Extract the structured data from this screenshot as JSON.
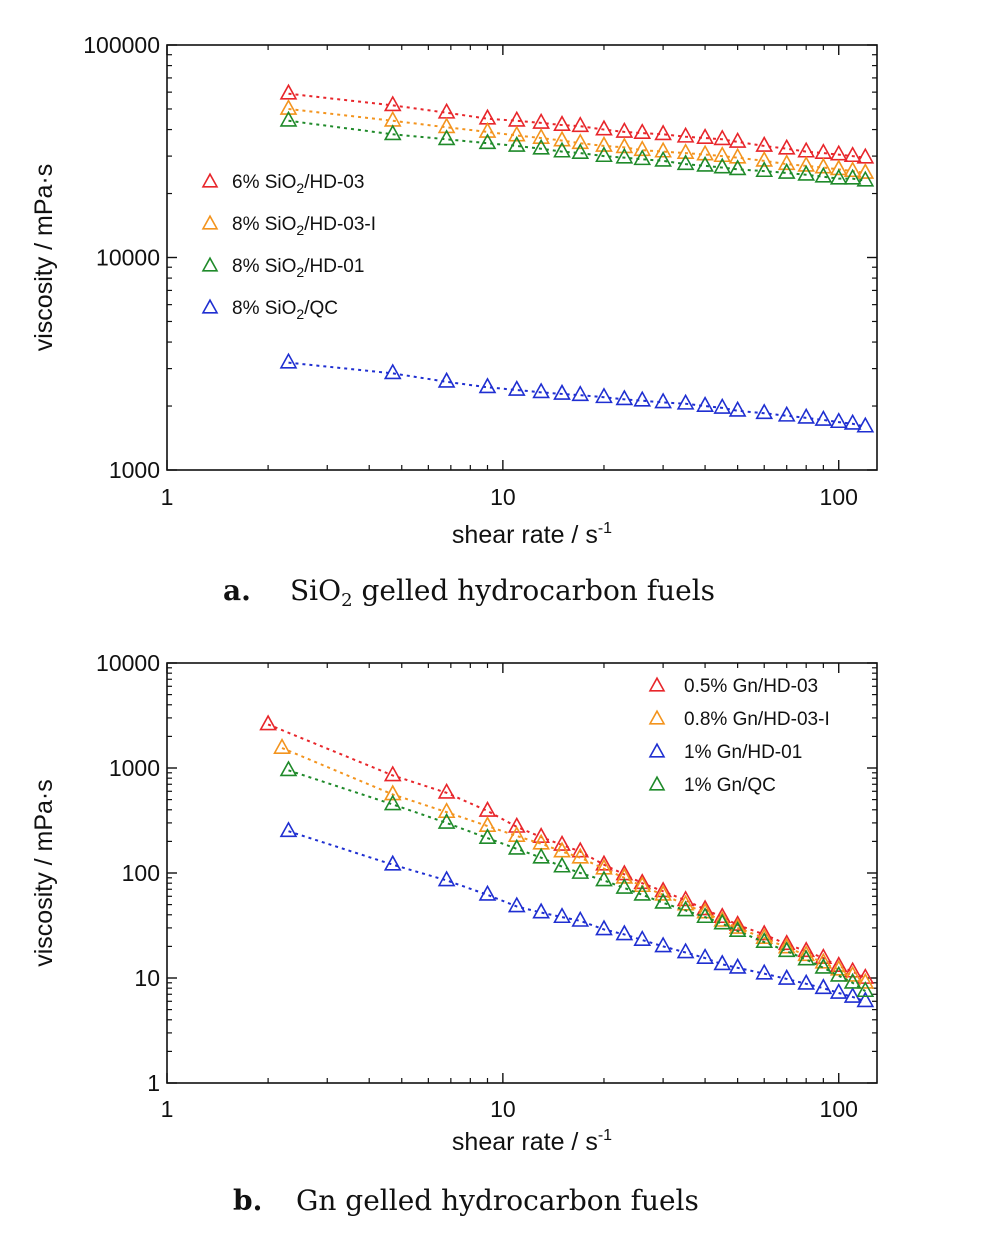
{
  "chart_data": [
    {
      "type": "scatter",
      "x_scale": "log",
      "y_scale": "log",
      "xlabel": "shear rate / s",
      "xlabel_sup": "-1",
      "ylabel": "viscosity / mPa·s",
      "xlim": [
        1,
        130
      ],
      "ylim": [
        1000,
        100000
      ],
      "x_ticks": [
        1,
        10,
        100
      ],
      "x_tick_labels": [
        "1",
        "10",
        "100"
      ],
      "y_ticks": [
        1000,
        10000,
        100000
      ],
      "y_tick_labels": [
        "1000",
        "10000",
        "100000"
      ],
      "grid": false,
      "legend_position": "middle-left",
      "caption_letter": "a.",
      "caption_text": "SiO₂ gelled hydrocarbon fuels",
      "series": [
        {
          "name": "6% SiO₂/HD-03",
          "color": "#e8262b",
          "marker": "open-triangle",
          "x": [
            2.3,
            4.7,
            6.8,
            9,
            11,
            13,
            15,
            17,
            20,
            23,
            26,
            30,
            35,
            40,
            45,
            50,
            60,
            70,
            80,
            90,
            100,
            110,
            120
          ],
          "y": [
            59000,
            52000,
            48000,
            45000,
            44000,
            43000,
            42000,
            41500,
            40000,
            39000,
            38500,
            38000,
            37000,
            36500,
            36000,
            35000,
            33500,
            32500,
            31500,
            31000,
            30500,
            30000,
            29500
          ]
        },
        {
          "name": "8% SiO₂/HD-03-I",
          "color": "#f3941e",
          "marker": "open-triangle",
          "x": [
            2.3,
            4.7,
            6.8,
            9,
            11,
            13,
            15,
            17,
            20,
            23,
            26,
            30,
            35,
            40,
            45,
            50,
            60,
            70,
            80,
            90,
            100,
            110,
            120
          ],
          "y": [
            50000,
            44000,
            41000,
            39000,
            37500,
            36500,
            35500,
            34500,
            33500,
            33000,
            32000,
            31500,
            31000,
            30500,
            30000,
            29500,
            28500,
            27500,
            27000,
            26500,
            26000,
            25500,
            25000
          ]
        },
        {
          "name": "8% SiO₂/HD-01",
          "color": "#1f8a2a",
          "marker": "open-triangle",
          "x": [
            2.3,
            4.7,
            6.8,
            9,
            11,
            13,
            15,
            17,
            20,
            23,
            26,
            30,
            35,
            40,
            45,
            50,
            60,
            70,
            80,
            90,
            100,
            110,
            120
          ],
          "y": [
            44000,
            38000,
            36000,
            34500,
            33500,
            32500,
            31500,
            31000,
            30000,
            29500,
            29000,
            28500,
            27500,
            27000,
            26500,
            26000,
            25500,
            25000,
            24500,
            24000,
            23500,
            23500,
            23000
          ]
        },
        {
          "name": "8% SiO₂/QC",
          "color": "#1f2fd1",
          "marker": "open-triangle",
          "x": [
            2.3,
            4.7,
            6.8,
            9,
            11,
            13,
            15,
            17,
            20,
            23,
            26,
            30,
            35,
            40,
            45,
            50,
            60,
            70,
            80,
            90,
            100,
            110,
            120
          ],
          "y": [
            3200,
            2850,
            2600,
            2450,
            2380,
            2320,
            2280,
            2250,
            2200,
            2150,
            2120,
            2080,
            2050,
            2000,
            1960,
            1900,
            1850,
            1800,
            1760,
            1720,
            1680,
            1650,
            1600
          ]
        }
      ]
    },
    {
      "type": "scatter",
      "x_scale": "log",
      "y_scale": "log",
      "xlabel": "shear rate / s",
      "xlabel_sup": "-1",
      "ylabel": "viscosity / mPa·s",
      "xlim": [
        1,
        130
      ],
      "ylim": [
        1,
        10000
      ],
      "x_ticks": [
        1,
        10,
        100
      ],
      "x_tick_labels": [
        "1",
        "10",
        "100"
      ],
      "y_ticks": [
        1,
        10,
        100,
        1000,
        10000
      ],
      "y_tick_labels": [
        "1",
        "10",
        "100",
        "1000",
        "10000"
      ],
      "grid": false,
      "legend_position": "top-right",
      "caption_letter": "b.",
      "caption_text": "Gn gelled hydrocarbon fuels",
      "series": [
        {
          "name": "0.5% Gn/HD-03",
          "color": "#e8262b",
          "marker": "open-triangle",
          "x": [
            2,
            4.7,
            6.8,
            9,
            11,
            13,
            15,
            17,
            20,
            23,
            26,
            30,
            35,
            40,
            45,
            50,
            60,
            70,
            80,
            90,
            100,
            110,
            120
          ],
          "y": [
            2600,
            850,
            580,
            390,
            275,
            220,
            185,
            160,
            120,
            97,
            80,
            67,
            55,
            45,
            38,
            32,
            26,
            21,
            18,
            15.5,
            13,
            11.5,
            10
          ]
        },
        {
          "name": "0.8% Gn/HD-03-I",
          "color": "#f3941e",
          "marker": "open-triangle",
          "x": [
            2.2,
            4.7,
            6.8,
            9,
            11,
            13,
            15,
            17,
            20,
            23,
            26,
            30,
            35,
            40,
            45,
            50,
            60,
            70,
            80,
            90,
            100,
            110,
            120
          ],
          "y": [
            1550,
            560,
            380,
            280,
            225,
            190,
            160,
            140,
            110,
            90,
            75,
            62,
            50,
            42,
            35,
            30,
            24,
            19.5,
            16.5,
            14,
            12,
            10.5,
            9
          ]
        },
        {
          "name": "1% Gn/HD-01",
          "color": "#1f2fd1",
          "marker": "open-triangle",
          "x": [
            2.3,
            4.7,
            6.8,
            9,
            11,
            13,
            15,
            17,
            20,
            23,
            26,
            30,
            35,
            40,
            45,
            50,
            60,
            70,
            80,
            90,
            100,
            110,
            120
          ],
          "y": [
            250,
            120,
            85,
            62,
            48,
            42,
            38,
            35,
            29,
            26,
            23,
            20,
            17.5,
            15.5,
            13.5,
            12.5,
            11,
            9.8,
            8.8,
            8,
            7.2,
            6.6,
            6
          ]
        },
        {
          "name": "1% Gn/QC",
          "color": "#1f8a2a",
          "marker": "open-triangle",
          "x": [
            2.3,
            4.7,
            6.8,
            9,
            11,
            13,
            15,
            17,
            20,
            23,
            26,
            30,
            35,
            40,
            45,
            50,
            60,
            70,
            80,
            90,
            100,
            110,
            120
          ],
          "y": [
            950,
            450,
            300,
            215,
            170,
            140,
            115,
            100,
            85,
            72,
            62,
            52,
            44,
            38,
            33,
            28,
            22,
            18,
            15,
            12.5,
            10.5,
            9,
            7.5
          ]
        }
      ]
    }
  ]
}
